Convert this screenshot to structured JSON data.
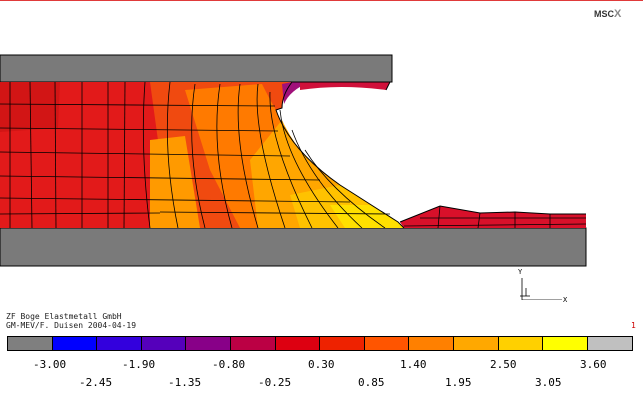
{
  "header": {
    "logo_text": "MSC",
    "logo_mark": "X"
  },
  "captions": {
    "company": "ZF Boge Elastmetall GmbH",
    "author_line": "GM-MEV/F. Duisen 2004-04-19"
  },
  "page_number": "1",
  "axis_triad": {
    "y_label": "Y",
    "x_label": "X"
  },
  "legend": {
    "colors": [
      "#7f7f7f",
      "#0000ff",
      "#3300dd",
      "#5500bb",
      "#880088",
      "#bb0044",
      "#dd0011",
      "#ee2200",
      "#ff5500",
      "#ff8000",
      "#ffa800",
      "#ffd000",
      "#ffff00",
      "#c0c0c0"
    ],
    "labels_top": [
      "-3.00",
      "-1.90",
      "-0.80",
      "0.30",
      "1.40",
      "2.50",
      "3.60"
    ],
    "labels_bottom": [
      "-2.45",
      "-1.35",
      "-0.25",
      "0.85",
      "1.95",
      "3.05"
    ]
  }
}
